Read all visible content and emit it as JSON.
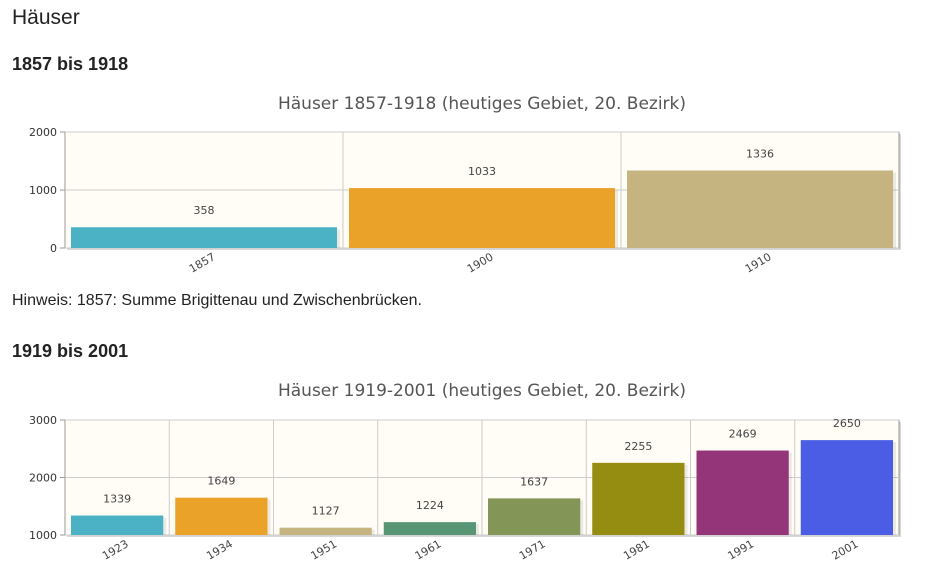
{
  "page": {
    "title": "Häuser",
    "section1_title": "1857 bis 1918",
    "note": "Hinweis: 1857: Summe Brigittenau und Zwischenbrücken.",
    "section2_title": "1919 bis 2001"
  },
  "chart_data": [
    {
      "type": "bar",
      "title": "Häuser 1857-1918 (heutiges Gebiet, 20. Bezirk)",
      "categories": [
        "1857",
        "1900",
        "1910"
      ],
      "values": [
        358,
        1033,
        1336
      ],
      "colors": [
        "#4bb2c5",
        "#eaa228",
        "#c5b47f"
      ],
      "ylim": [
        0,
        2000
      ],
      "yticks": [
        "0",
        "1000",
        "2000"
      ],
      "grid": true,
      "xlabel": "",
      "ylabel": ""
    },
    {
      "type": "bar",
      "title": "Häuser 1919-2001 (heutiges Gebiet, 20. Bezirk)",
      "categories": [
        "1923",
        "1934",
        "1951",
        "1961",
        "1971",
        "1981",
        "1991",
        "2001"
      ],
      "values": [
        1339,
        1649,
        1127,
        1224,
        1637,
        2255,
        2469,
        2650
      ],
      "colors": [
        "#4bb2c5",
        "#eaa228",
        "#c5b47f",
        "#579575",
        "#839557",
        "#958c12",
        "#953579",
        "#4b5de4"
      ],
      "ylim": [
        1000,
        3000
      ],
      "yticks": [
        "1000",
        "2000",
        "3000"
      ],
      "grid": true,
      "xlabel": "",
      "ylabel": ""
    }
  ]
}
